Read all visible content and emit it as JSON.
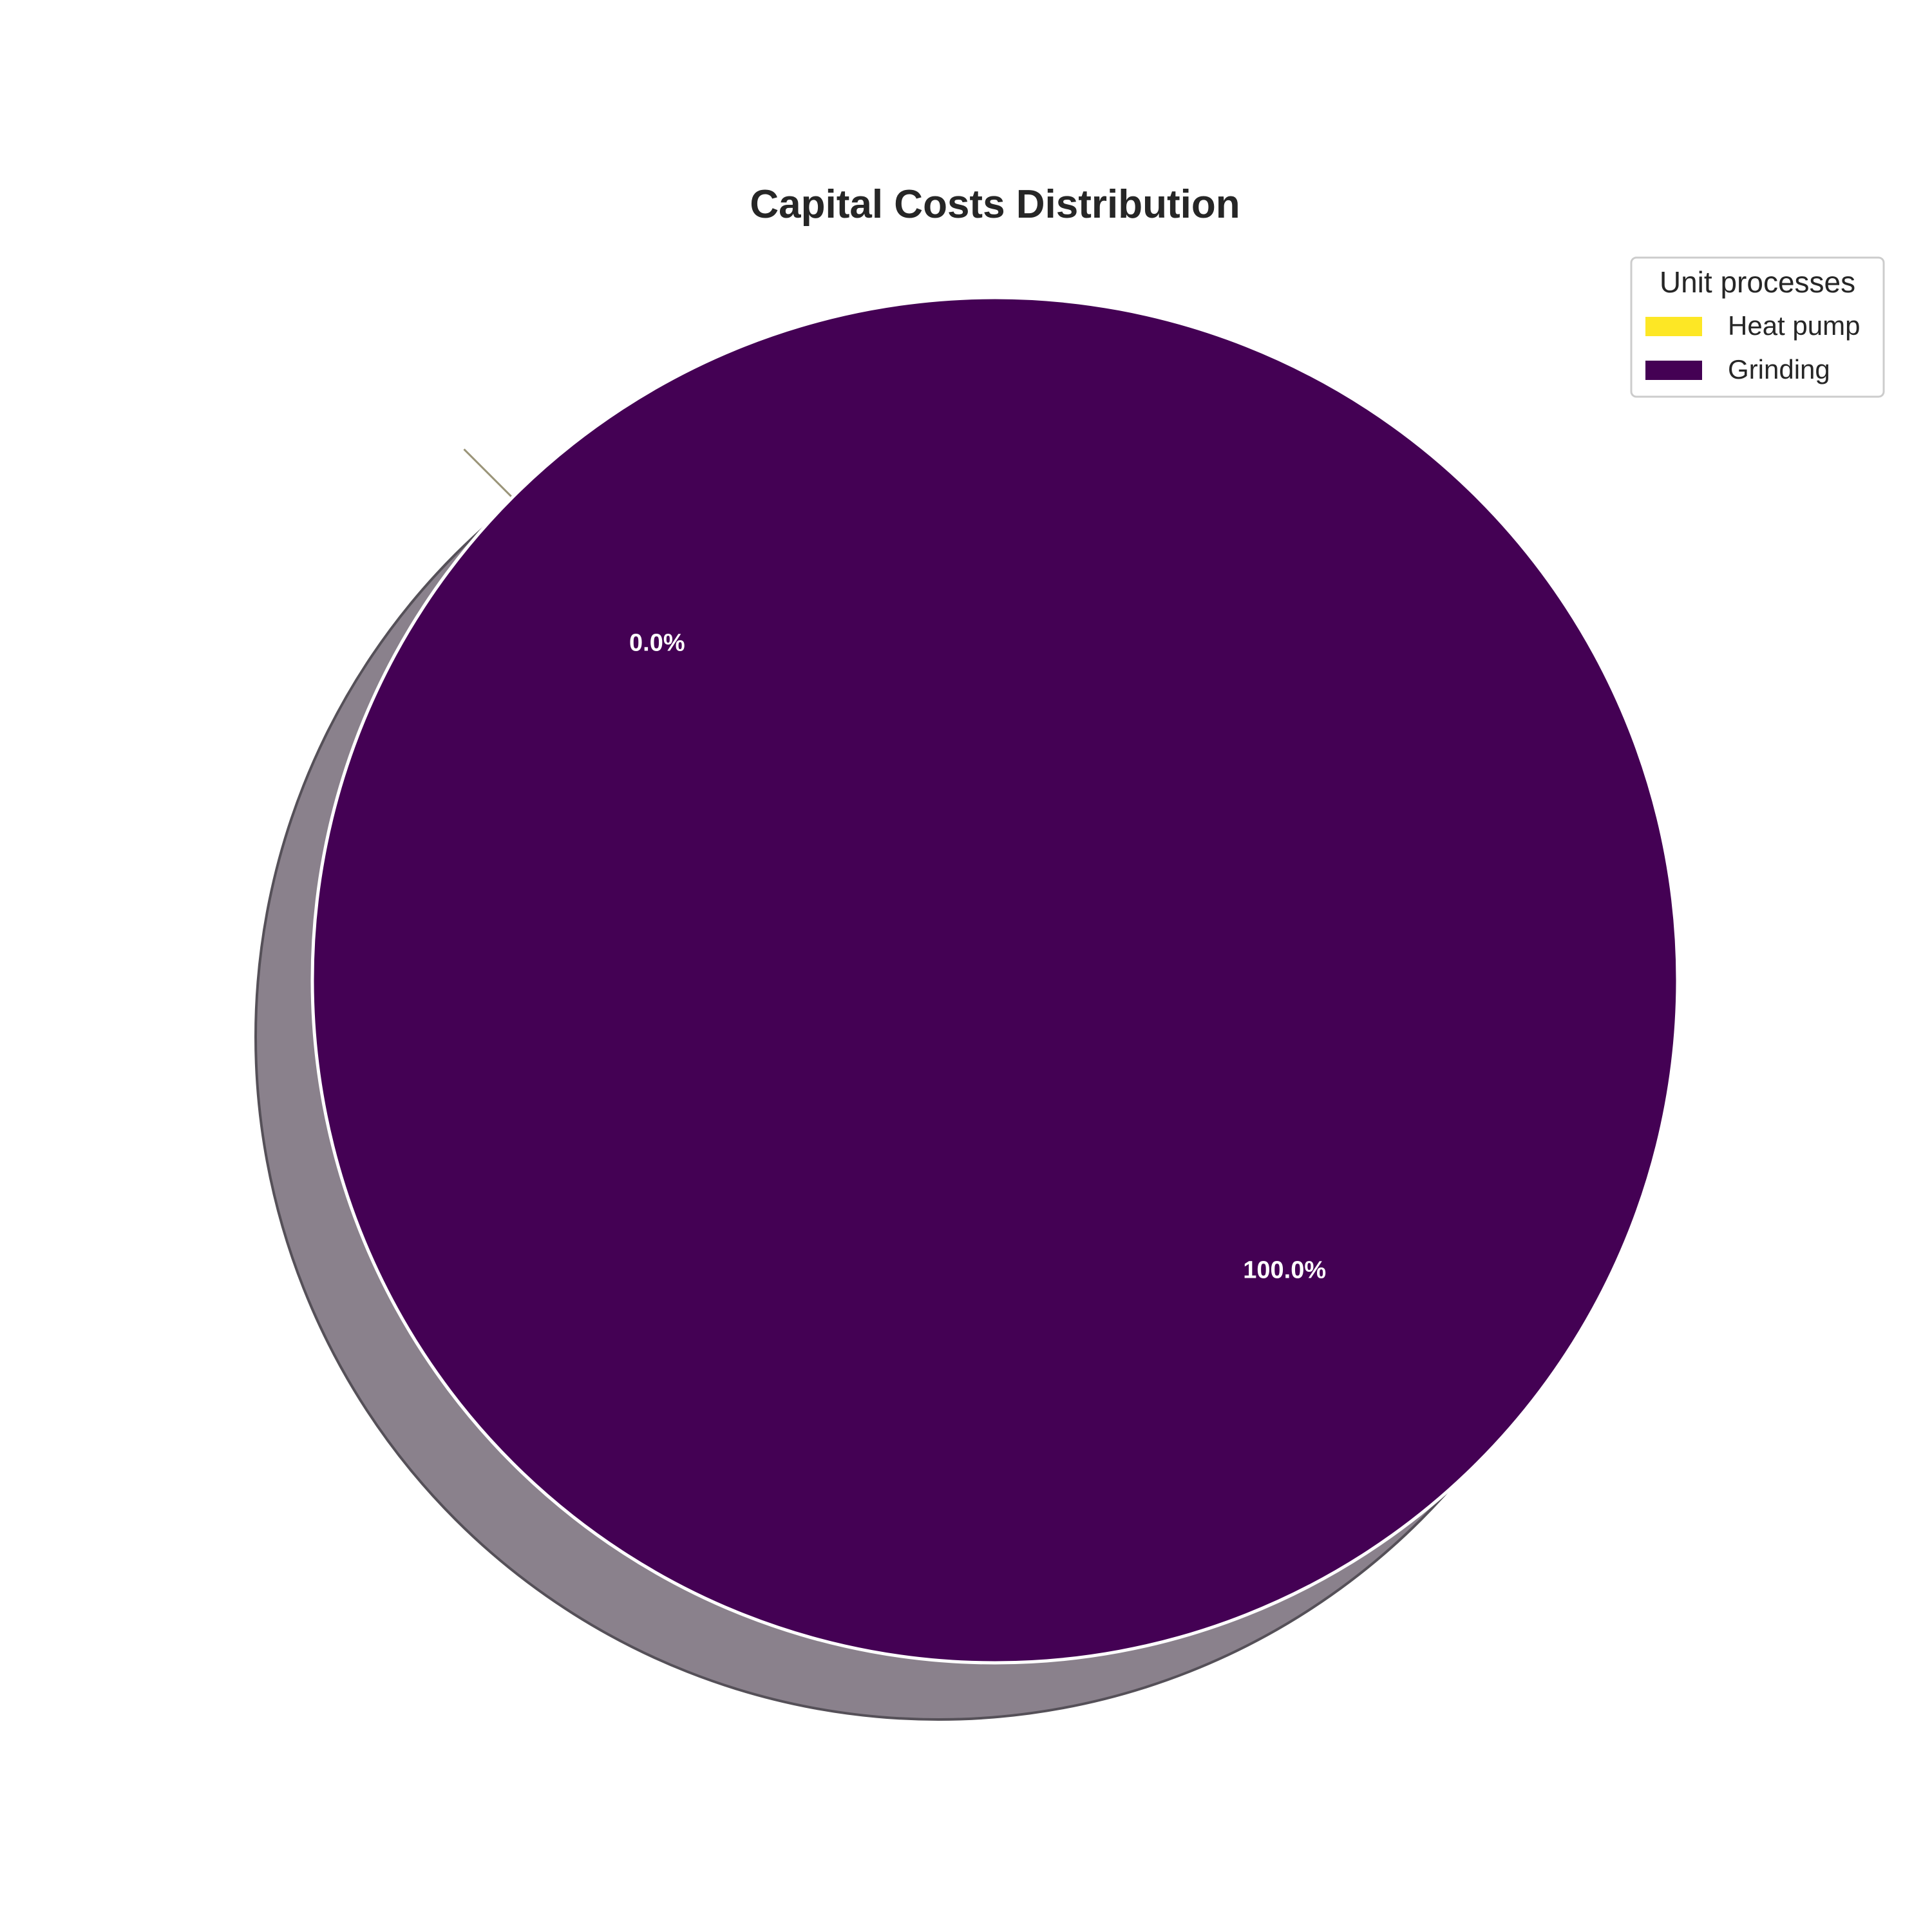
{
  "chart_data": {
    "type": "pie",
    "title": "Capital Costs Distribution",
    "legend": {
      "title": "Unit processes",
      "placement": "top-right"
    },
    "slices": [
      {
        "label": "Heat pump",
        "value": 0.0,
        "pct_label": "0.0%",
        "color": "#fde725"
      },
      {
        "label": "Grinding",
        "value": 100.0,
        "pct_label": "100.0%",
        "color": "#440154"
      }
    ],
    "shadow": true,
    "exploded": true,
    "shadow_color": "#8a818c",
    "edge_color": "#ffffff"
  }
}
